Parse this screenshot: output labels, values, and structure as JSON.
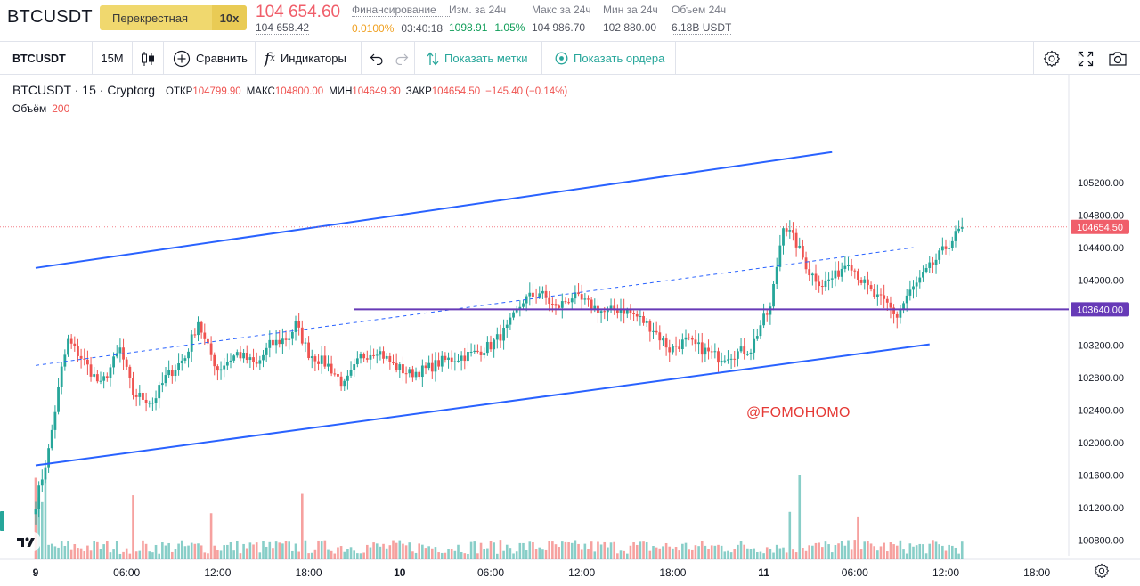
{
  "header": {
    "symbol": "BTCUSDT",
    "margin_mode": "Перекрестная",
    "leverage": "10x",
    "last_price": "104 654.60",
    "mark_price": "104 658.42",
    "funding": {
      "label": "Финансирование",
      "rate": "0.0100%",
      "countdown": "03:40:18"
    },
    "change_24h": {
      "label": "Изм. за 24ч",
      "value": "1098.91",
      "pct": "1.05%"
    },
    "high_24h": {
      "label": "Макс за 24ч",
      "value": "104 986.70"
    },
    "low_24h": {
      "label": "Мин за 24ч",
      "value": "102 880.00"
    },
    "volume_24h": {
      "label": "Объем 24ч",
      "value": "6.18B USDT"
    }
  },
  "toolbar": {
    "symbol": "BTCUSDT",
    "interval": "15M",
    "compare": "Сравнить",
    "indicators": "Индикаторы",
    "show_marks": "Показать метки",
    "show_orders": "Показать ордера"
  },
  "legend": {
    "title": "BTCUSDT · 15 · Cryptorg",
    "open_label": "ОТКР",
    "open": "104799.90",
    "high_label": "МАКС",
    "high": "104800.00",
    "low_label": "МИН",
    "low": "104649.30",
    "close_label": "ЗАКР",
    "close": "104654.50",
    "change": "−145.40 (−0.14%)",
    "volume_label": "Объём",
    "volume": "200"
  },
  "watermark": "@FOMOHOMO",
  "colors": {
    "up": "#26a69a",
    "down": "#ef5350",
    "channel": "#2962ff",
    "level": "#673ab7",
    "price_tag": "#f05e6a"
  },
  "chart_data": {
    "type": "candlestick",
    "symbol": "BTCUSDT",
    "interval": "15",
    "price_axis": [
      "105200.00",
      "104800.00",
      "104400.00",
      "104000.00",
      "103600.00",
      "103200.00",
      "102800.00",
      "102400.00",
      "102000.00",
      "101600.00",
      "101200.00",
      "100800.00"
    ],
    "time_axis": [
      "9",
      "06:00",
      "12:00",
      "18:00",
      "10",
      "06:00",
      "12:00",
      "18:00",
      "11",
      "06:00",
      "12:00",
      "18:00"
    ],
    "current_price": "104654.50",
    "level": "103640.00",
    "close_path": [
      [
        0,
        101250
      ],
      [
        4,
        101900
      ],
      [
        8,
        102900
      ],
      [
        10,
        103250
      ],
      [
        14,
        103050
      ],
      [
        20,
        102700
      ],
      [
        26,
        103150
      ],
      [
        30,
        102600
      ],
      [
        36,
        102500
      ],
      [
        40,
        102800
      ],
      [
        46,
        103050
      ],
      [
        50,
        103500
      ],
      [
        52,
        103250
      ],
      [
        56,
        102900
      ],
      [
        62,
        103100
      ],
      [
        68,
        102950
      ],
      [
        72,
        103200
      ],
      [
        78,
        103300
      ],
      [
        80,
        103450
      ],
      [
        84,
        103100
      ],
      [
        90,
        102950
      ],
      [
        95,
        102700
      ],
      [
        100,
        103050
      ],
      [
        105,
        103150
      ],
      [
        110,
        102950
      ],
      [
        115,
        102850
      ],
      [
        120,
        102900
      ],
      [
        125,
        103000
      ],
      [
        130,
        103050
      ],
      [
        135,
        103100
      ],
      [
        140,
        103200
      ],
      [
        145,
        103400
      ],
      [
        150,
        103750
      ],
      [
        155,
        103850
      ],
      [
        160,
        103650
      ],
      [
        165,
        103800
      ],
      [
        170,
        103700
      ],
      [
        175,
        103600
      ],
      [
        180,
        103650
      ],
      [
        185,
        103550
      ],
      [
        190,
        103400
      ],
      [
        195,
        103150
      ],
      [
        200,
        103250
      ],
      [
        205,
        103150
      ],
      [
        210,
        103050
      ],
      [
        215,
        103100
      ],
      [
        220,
        103150
      ],
      [
        223,
        103450
      ],
      [
        226,
        103650
      ],
      [
        230,
        104700
      ],
      [
        234,
        104450
      ],
      [
        238,
        104100
      ],
      [
        242,
        103950
      ],
      [
        246,
        104050
      ],
      [
        250,
        104250
      ],
      [
        254,
        104000
      ],
      [
        258,
        103800
      ],
      [
        262,
        103700
      ],
      [
        265,
        103550
      ],
      [
        268,
        103800
      ],
      [
        272,
        104000
      ],
      [
        276,
        104200
      ],
      [
        280,
        104400
      ],
      [
        282,
        104500
      ],
      [
        285,
        104654.5
      ]
    ],
    "channel_upper": [
      [
        0,
        104150
      ],
      [
        245,
        105575
      ]
    ],
    "channel_lower": [
      [
        0,
        101720
      ],
      [
        275,
        103210
      ]
    ],
    "channel_mid": [
      [
        0,
        102950
      ],
      [
        270,
        104400
      ]
    ]
  }
}
